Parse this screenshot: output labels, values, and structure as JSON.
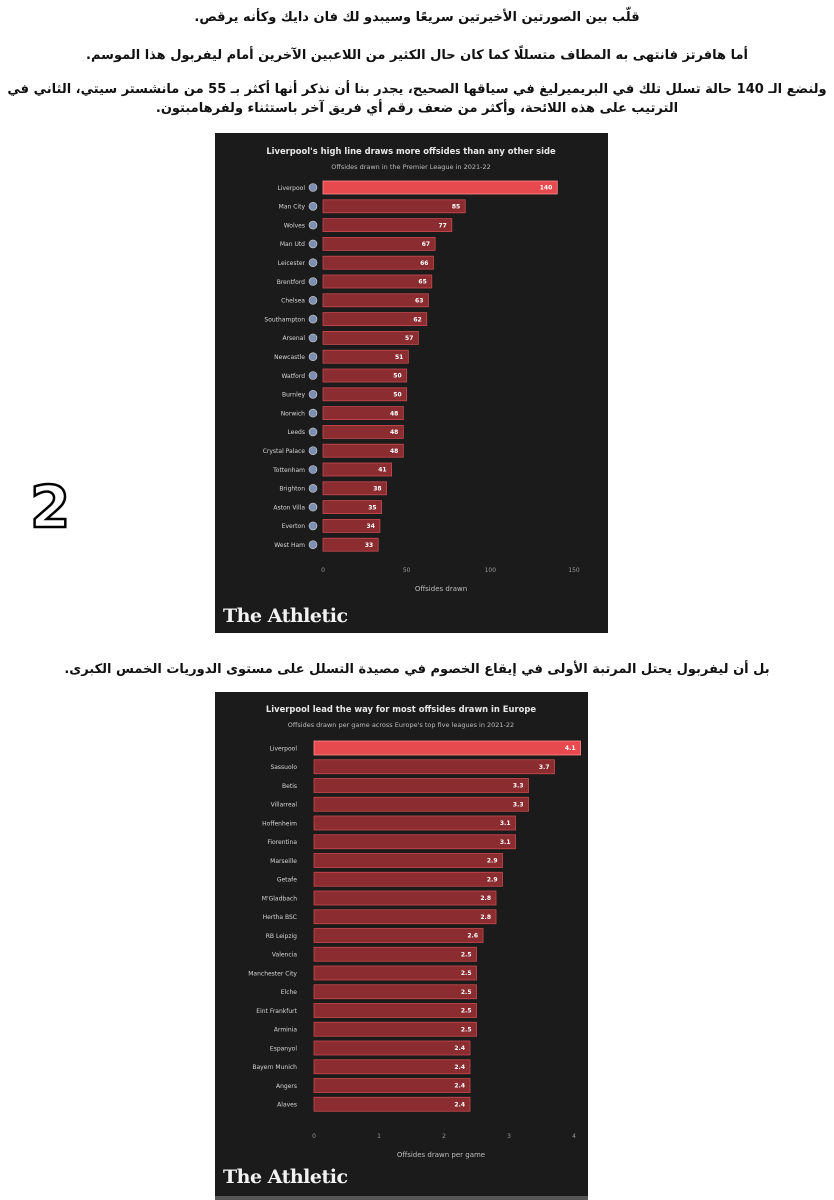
{
  "article": {
    "p1": "قلّب بين الصورتين الأخيرتين سريعًا وسيبدو لك فان دايك وكأنه يرقص.",
    "p2": "أما هافرتز فانتهى به المطاف متسللًا كما كان حال الكثير من اللاعبين الآخرين أمام ليفربول هذا الموسم.",
    "p3": "ولنضع الـ 140 حالة تسلل تلك في البريميرليغ في سياقها الصحيح، يجدر بنا أن نذكر أنها أكثر بـ 55 من مانشستر سيتي، الثاني في الترتيب على هذه اللائحة، وأكثر من ضعف رقم أي فريق آخر باستثناء ولفرهامبتون.",
    "p4": "بل أن ليفربول يحتل المرتبة الأولى في إيقاع الخصوم في مصيدة التسلل على مستوى الدوريات الخمس الكبرى.",
    "page_number": "2"
  },
  "brand": "The Athletic",
  "colors": {
    "highlight_bar": "#e64a4f",
    "bar": "#8a2c30",
    "bar_edge": "#c94a4f",
    "panel_bg": "#1b1b1b"
  },
  "chart_data": [
    {
      "type": "bar",
      "orientation": "horizontal",
      "title": "Liverpool's high line draws more offsides than any other side",
      "subtitle": "Offsides drawn in the Premier League in 2021-22",
      "categories": [
        "Liverpool",
        "Man City",
        "Wolves",
        "Man Utd",
        "Leicester",
        "Brentford",
        "Chelsea",
        "Southampton",
        "Arsenal",
        "Newcastle",
        "Watford",
        "Burnley",
        "Norwich",
        "Leeds",
        "Crystal Palace",
        "Tottenham",
        "Brighton",
        "Aston Villa",
        "Everton",
        "West Ham"
      ],
      "values": [
        140,
        85,
        77,
        67,
        66,
        65,
        63,
        62,
        57,
        51,
        50,
        50,
        48,
        48,
        48,
        41,
        38,
        35,
        34,
        33
      ],
      "value_labels": [
        "140",
        "85",
        "77",
        "67",
        "66",
        "65",
        "63",
        "62",
        "57",
        "51",
        "50",
        "50",
        "48",
        "48",
        "48",
        "41",
        "38",
        "35",
        "34",
        "33"
      ],
      "xlabel": "Offsides drawn",
      "xlim": [
        0,
        150
      ],
      "xticks": [
        "0",
        "50",
        "100",
        "150"
      ],
      "team_crest_icons": true,
      "highlight": "Liverpool"
    },
    {
      "type": "bar",
      "orientation": "horizontal",
      "title": "Liverpool lead the way for most offsides drawn in Europe",
      "subtitle": "Offsides drawn per game across Europe's top five leagues in 2021-22",
      "categories": [
        "Liverpool",
        "Sassuolo",
        "Betis",
        "Villarreal",
        "Hoffenheim",
        "Fiorentina",
        "Marseille",
        "Getafe",
        "M'Gladbach",
        "Hertha BSC",
        "RB Leipzig",
        "Valencia",
        "Manchester City",
        "Elche",
        "Eint Frankfurt",
        "Arminia",
        "Espanyol",
        "Bayern Munich",
        "Angers",
        "Alaves"
      ],
      "values": [
        4.1,
        3.7,
        3.3,
        3.3,
        3.1,
        3.1,
        2.9,
        2.9,
        2.8,
        2.8,
        2.6,
        2.5,
        2.5,
        2.5,
        2.5,
        2.5,
        2.4,
        2.4,
        2.4,
        2.4
      ],
      "value_labels": [
        "4.1",
        "3.7",
        "3.3",
        "3.3",
        "3.1",
        "3.1",
        "2.9",
        "2.9",
        "2.8",
        "2.8",
        "2.6",
        "2.5",
        "2.5",
        "2.5",
        "2.5",
        "2.5",
        "2.4",
        "2.4",
        "2.4",
        "2.4"
      ],
      "xlabel": "Offsides drawn per game",
      "xlim": [
        0,
        4.2
      ],
      "xticks": [
        "0",
        "1",
        "2",
        "3",
        "4"
      ],
      "xtick_values": [
        0,
        1,
        2,
        3,
        4
      ],
      "highlight": "Liverpool"
    }
  ]
}
